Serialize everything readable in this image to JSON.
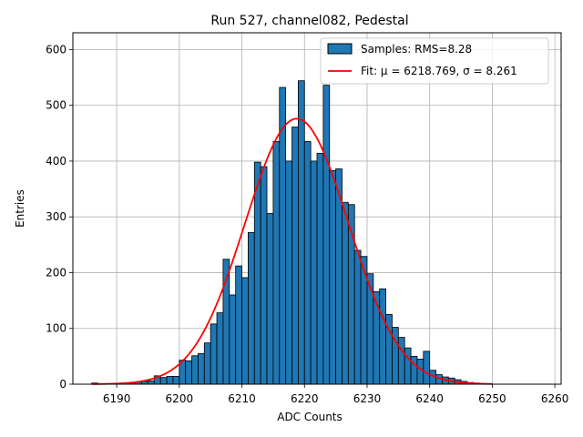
{
  "chart_data": {
    "type": "bar",
    "title": "Run 527, channel082, Pedestal",
    "xlabel": "ADC Counts",
    "ylabel": "Entries",
    "xlim": [
      6183,
      6261
    ],
    "ylim": [
      0,
      630
    ],
    "xticks": [
      6190,
      6200,
      6210,
      6220,
      6230,
      6240,
      6250,
      6260
    ],
    "yticks": [
      0,
      100,
      200,
      300,
      400,
      500,
      600
    ],
    "grid": true,
    "legend_position": "top-right",
    "colors": {
      "bars": "#1f77b4",
      "bar_edge": "#000000",
      "fit": "#ff0000",
      "grid": "#b0b0b0"
    },
    "histogram": {
      "name": "Samples: RMS=8.28",
      "x_start": 6186,
      "bin_width": 1,
      "counts": [
        2,
        1,
        1,
        1,
        1,
        2,
        2,
        4,
        5,
        6,
        15,
        12,
        14,
        14,
        43,
        42,
        51,
        55,
        74,
        108,
        128,
        224,
        160,
        212,
        191,
        272,
        398,
        390,
        306,
        435,
        532,
        400,
        461,
        544,
        435,
        400,
        414,
        536,
        383,
        386,
        326,
        322,
        240,
        229,
        198,
        166,
        171,
        125,
        102,
        84,
        65,
        50,
        45,
        59,
        25,
        17,
        13,
        11,
        8,
        5,
        3,
        2,
        1,
        1
      ]
    },
    "fit": {
      "name": "Fit: μ = 6218.769, σ = 8.261",
      "mu": 6218.769,
      "sigma": 8.261,
      "amplitude": 476,
      "x_range": [
        6186,
        6250
      ]
    }
  }
}
